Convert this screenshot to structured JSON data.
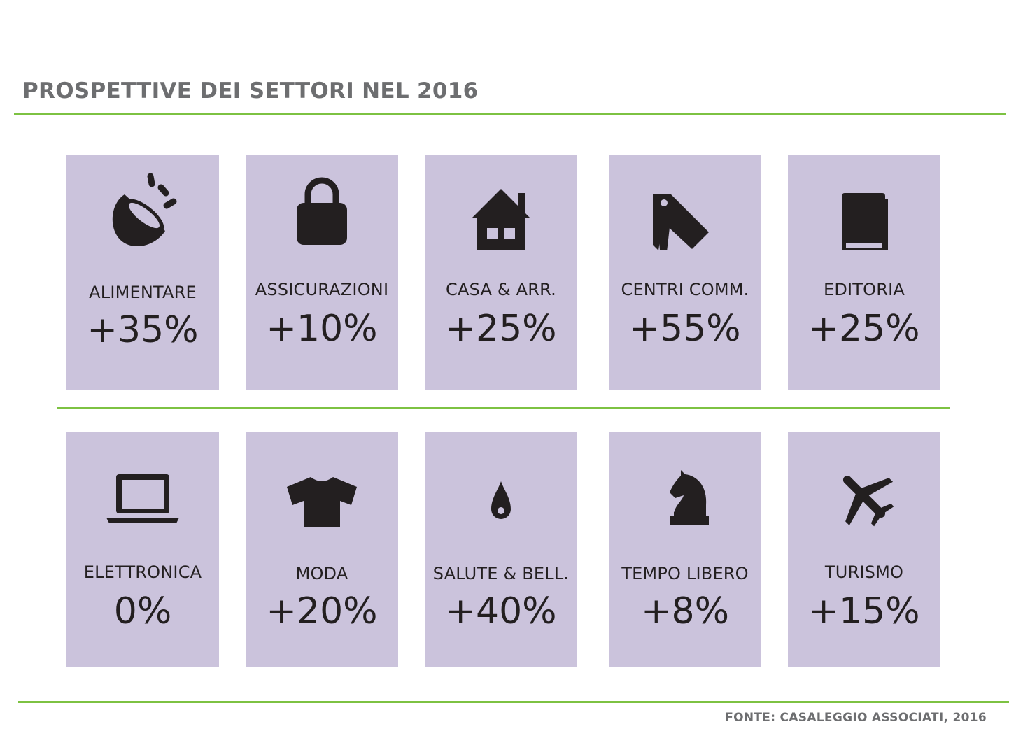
{
  "title": "PROSPETTIVE DEI SETTORI NEL 2016",
  "source": "FONTE: CASALEGGIO ASSOCIATI, 2016",
  "colors": {
    "tile": "#cbc3dc",
    "accent_rule": "#7dc242",
    "icon": "#231f20",
    "heading": "#6d6e70"
  },
  "sectors": [
    {
      "label": "ALIMENTARE",
      "value": "+35%",
      "icon": "bowl-icon"
    },
    {
      "label": "ASSICURAZIONI",
      "value": "+10%",
      "icon": "lock-icon"
    },
    {
      "label": "CASA & ARR.",
      "value": "+25%",
      "icon": "house-icon"
    },
    {
      "label": "CENTRI COMM.",
      "value": "+55%",
      "icon": "price-tag-icon"
    },
    {
      "label": "EDITORIA",
      "value": "+25%",
      "icon": "book-icon"
    },
    {
      "label": "ELETTRONICA",
      "value": "0%",
      "icon": "laptop-icon"
    },
    {
      "label": "MODA",
      "value": "+20%",
      "icon": "tshirt-icon"
    },
    {
      "label": "SALUTE & BELL.",
      "value": "+40%",
      "icon": "drop-icon"
    },
    {
      "label": "TEMPO LIBERO",
      "value": "+8%",
      "icon": "chess-knight-icon"
    },
    {
      "label": "TURISMO",
      "value": "+15%",
      "icon": "airplane-icon"
    }
  ]
}
